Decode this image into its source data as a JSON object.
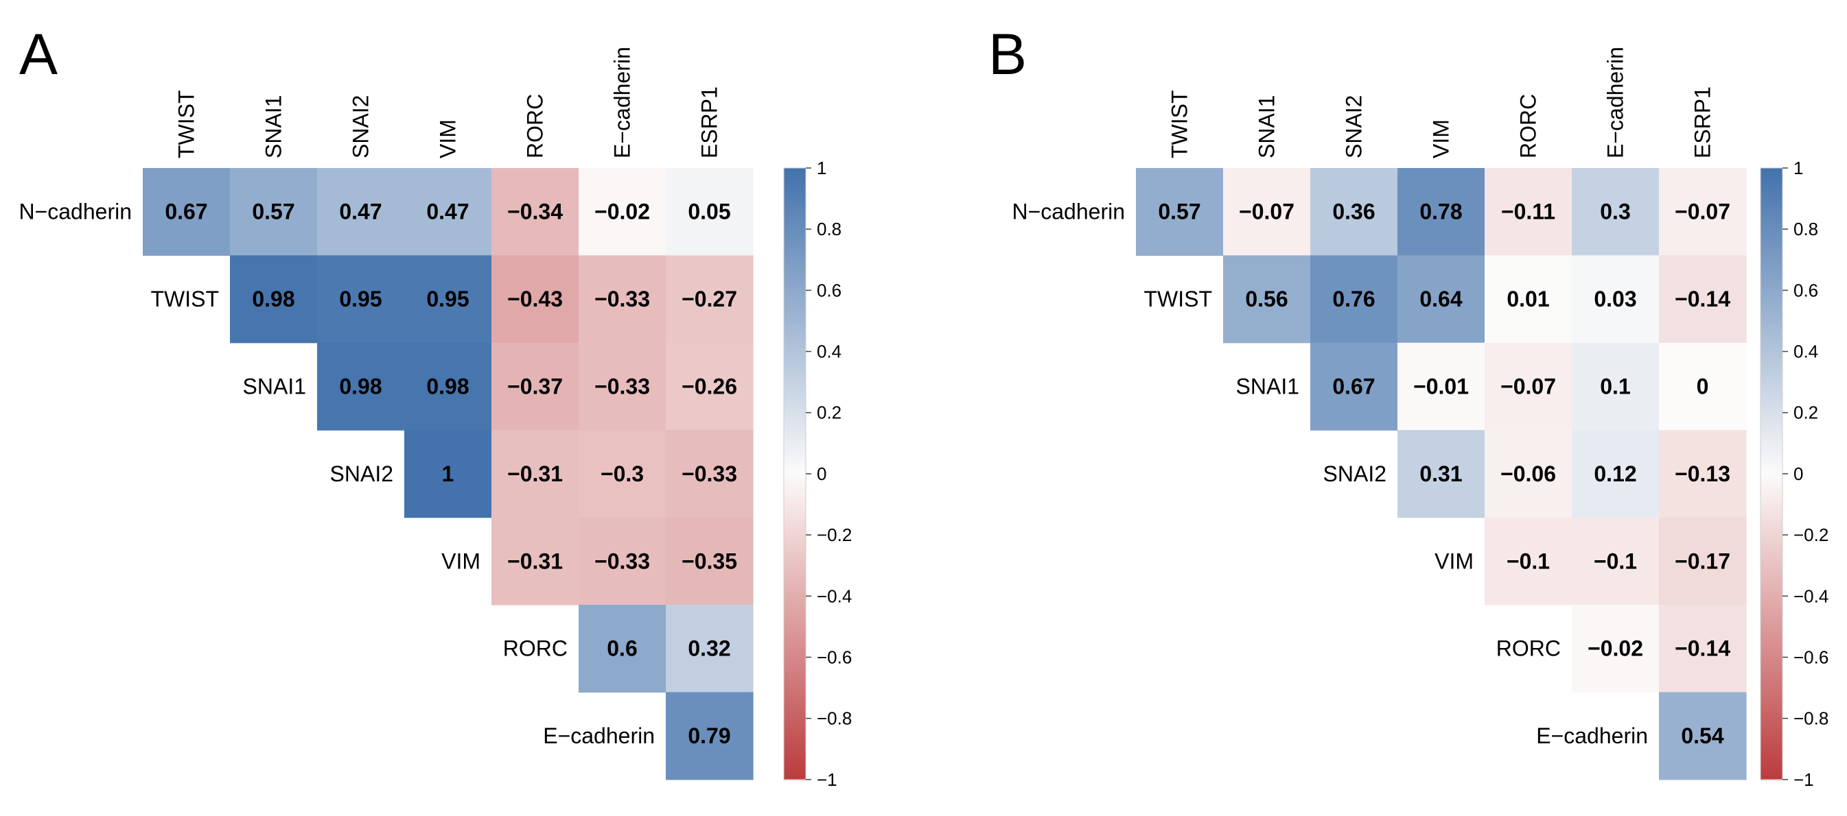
{
  "chart_data": [
    {
      "type": "heatmap",
      "panel": "A",
      "columns": [
        "TWIST",
        "SNAI1",
        "SNAI2",
        "VIM",
        "RORC",
        "E−cadherin",
        "ESRP1"
      ],
      "rows": [
        "N−cadherin",
        "TWIST",
        "SNAI1",
        "SNAI2",
        "VIM",
        "RORC",
        "E−cadherin"
      ],
      "values": [
        [
          0.67,
          0.57,
          0.47,
          0.47,
          -0.34,
          -0.02,
          0.05
        ],
        [
          null,
          0.98,
          0.95,
          0.95,
          -0.43,
          -0.33,
          -0.27
        ],
        [
          null,
          null,
          0.98,
          0.98,
          -0.37,
          -0.33,
          -0.26
        ],
        [
          null,
          null,
          null,
          1,
          -0.31,
          -0.3,
          -0.33
        ],
        [
          null,
          null,
          null,
          null,
          -0.31,
          -0.33,
          -0.35
        ],
        [
          null,
          null,
          null,
          null,
          null,
          0.6,
          0.32
        ],
        [
          null,
          null,
          null,
          null,
          null,
          null,
          0.79
        ]
      ],
      "labels": [
        [
          "0.67",
          "0.57",
          "0.47",
          "0.47",
          "−0.34",
          "−0.02",
          "0.05"
        ],
        [
          "",
          "0.98",
          "0.95",
          "0.95",
          "−0.43",
          "−0.33",
          "−0.27"
        ],
        [
          "",
          "",
          "0.98",
          "0.98",
          "−0.37",
          "−0.33",
          "−0.26"
        ],
        [
          "",
          "",
          "",
          "1",
          "−0.31",
          "−0.3",
          "−0.33"
        ],
        [
          "",
          "",
          "",
          "",
          "−0.31",
          "−0.33",
          "−0.35"
        ],
        [
          "",
          "",
          "",
          "",
          "",
          "0.6",
          "0.32"
        ],
        [
          "",
          "",
          "",
          "",
          "",
          "",
          "0.79"
        ]
      ],
      "colorbar": {
        "range": [
          -1,
          1
        ],
        "ticks": [
          1,
          0.8,
          0.6,
          0.4,
          0.2,
          0,
          -0.2,
          -0.4,
          -0.6,
          -0.8,
          -1
        ],
        "tick_labels": [
          "1",
          "0.8",
          "0.6",
          "0.4",
          "0.2",
          "0",
          "−0.2",
          "−0.4",
          "−0.6",
          "−0.8",
          "−1"
        ]
      }
    },
    {
      "type": "heatmap",
      "panel": "B",
      "columns": [
        "TWIST",
        "SNAI1",
        "SNAI2",
        "VIM",
        "RORC",
        "E−cadherin",
        "ESRP1"
      ],
      "rows": [
        "N−cadherin",
        "TWIST",
        "SNAI1",
        "SNAI2",
        "VIM",
        "RORC",
        "E−cadherin"
      ],
      "values": [
        [
          0.57,
          -0.07,
          0.36,
          0.78,
          -0.11,
          0.3,
          -0.07
        ],
        [
          null,
          0.56,
          0.76,
          0.64,
          0.01,
          0.03,
          -0.14
        ],
        [
          null,
          null,
          0.67,
          -0.01,
          -0.07,
          0.1,
          0
        ],
        [
          null,
          null,
          null,
          0.31,
          -0.06,
          0.12,
          -0.13
        ],
        [
          null,
          null,
          null,
          null,
          -0.1,
          -0.1,
          -0.17
        ],
        [
          null,
          null,
          null,
          null,
          null,
          -0.02,
          -0.14
        ],
        [
          null,
          null,
          null,
          null,
          null,
          null,
          0.54
        ]
      ],
      "labels": [
        [
          "0.57",
          "−0.07",
          "0.36",
          "0.78",
          "−0.11",
          "0.3",
          "−0.07"
        ],
        [
          "",
          "0.56",
          "0.76",
          "0.64",
          "0.01",
          "0.03",
          "−0.14"
        ],
        [
          "",
          "",
          "0.67",
          "−0.01",
          "−0.07",
          "0.1",
          "0"
        ],
        [
          "",
          "",
          "",
          "0.31",
          "−0.06",
          "0.12",
          "−0.13"
        ],
        [
          "",
          "",
          "",
          "",
          "−0.1",
          "−0.1",
          "−0.17"
        ],
        [
          "",
          "",
          "",
          "",
          "",
          "−0.02",
          "−0.14"
        ],
        [
          "",
          "",
          "",
          "",
          "",
          "",
          "0.54"
        ]
      ],
      "colorbar": {
        "range": [
          -1,
          1
        ],
        "ticks": [
          1,
          0.8,
          0.6,
          0.4,
          0.2,
          0,
          -0.2,
          -0.4,
          -0.6,
          -0.8,
          -1
        ],
        "tick_labels": [
          "1",
          "0.8",
          "0.6",
          "0.4",
          "0.2",
          "0",
          "−0.2",
          "−0.4",
          "−0.6",
          "−0.8",
          "−1"
        ]
      }
    }
  ],
  "colors": {
    "positive": "#4372ac",
    "neutral": "#fcfbfa",
    "negative": "#bb3b3d",
    "text": "#000000"
  }
}
